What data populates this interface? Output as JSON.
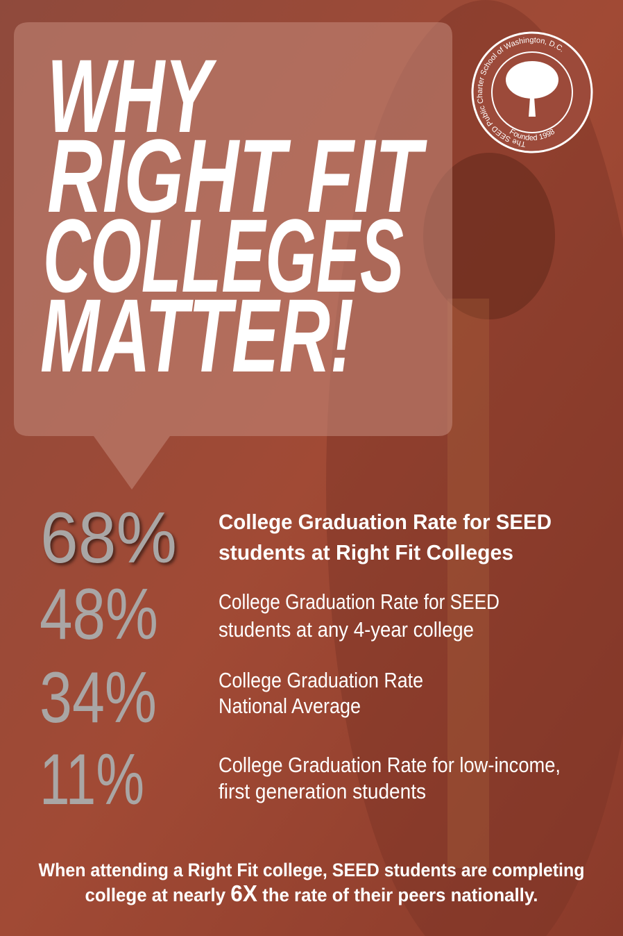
{
  "header": {
    "title_lines": [
      "WHY",
      "RIGHT FIT",
      "COLLEGES",
      "MATTER!"
    ]
  },
  "logo": {
    "ring_text": "The SEED Public Charter School of Washington, D.C.",
    "founded": "Founded 1998"
  },
  "stats": [
    {
      "value": "68%",
      "lines": [
        "College Graduation Rate for SEED",
        "students at Right Fit Colleges"
      ]
    },
    {
      "value": "48%",
      "lines": [
        "College Graduation Rate for SEED",
        "students at any 4-year college"
      ]
    },
    {
      "value": "34%",
      "lines": [
        "College Graduation Rate",
        "National Average"
      ]
    },
    {
      "value": "11%",
      "lines": [
        "College Graduation Rate for low-income,",
        "first generation students"
      ]
    }
  ],
  "footer": {
    "line1": "When attending a Right Fit college, SEED students are completing",
    "line2_before": "college at nearly ",
    "line2_emphasis": "6X",
    "line2_after": " the rate of their peers nationally."
  }
}
